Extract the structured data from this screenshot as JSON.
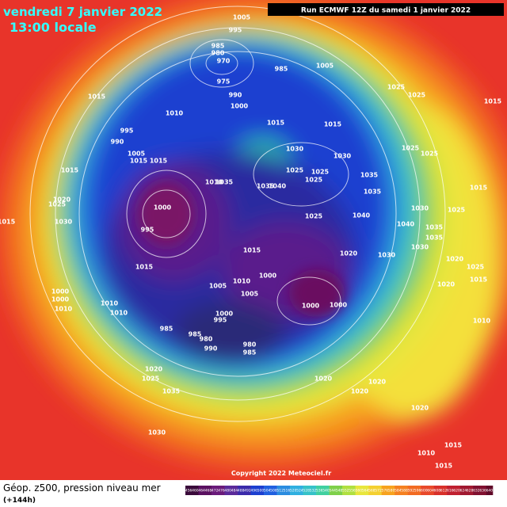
{
  "header": {
    "date": "vendredi 7 janvier 2022",
    "time": "13:00 locale",
    "run": "Run ECMWF 12Z du samedi 1 janvier 2022"
  },
  "footer": {
    "title": "Géop. z500, pression niveau mer",
    "subtitle": "(+144h)",
    "copyright": "Copyright 2022 Meteociel.fr"
  },
  "legend": {
    "labels": [
      456,
      460,
      464,
      468,
      472,
      476,
      480,
      484,
      488,
      492,
      496,
      500,
      504,
      508,
      512,
      516,
      520,
      524,
      528,
      532,
      536,
      540,
      544,
      548,
      552,
      556,
      560,
      564,
      568,
      572,
      576,
      580,
      584,
      588,
      592,
      596,
      600,
      604,
      608,
      612,
      616,
      620,
      624,
      628,
      632,
      636,
      640
    ]
  },
  "isobar_labels": [
    1005,
    995,
    985,
    980,
    970,
    975,
    985,
    1005,
    990,
    1000,
    1015,
    1010,
    1015,
    1015,
    1025,
    1025,
    1015,
    995,
    990,
    1005,
    1015,
    1015,
    1030,
    1030,
    1025,
    1025,
    1025,
    1025,
    1025,
    1035,
    1015,
    1010,
    1035,
    1035,
    1040,
    1035,
    1015,
    1020,
    1025,
    1000,
    1030,
    1025,
    1040,
    1025,
    1030,
    1015,
    995,
    1035,
    1040,
    1035,
    1015,
    1020,
    1030,
    1030,
    1020,
    1025,
    1015,
    1000,
    1005,
    1010,
    1005,
    1015,
    1020,
    1000,
    1000,
    1010,
    1000,
    1000,
    1010,
    1010,
    1000,
    995,
    1010,
    985,
    985,
    980,
    990,
    980,
    985,
    1020,
    1025,
    1020,
    1020,
    1035,
    1020,
    1020,
    1030,
    1010,
    1015,
    1015
  ]
}
